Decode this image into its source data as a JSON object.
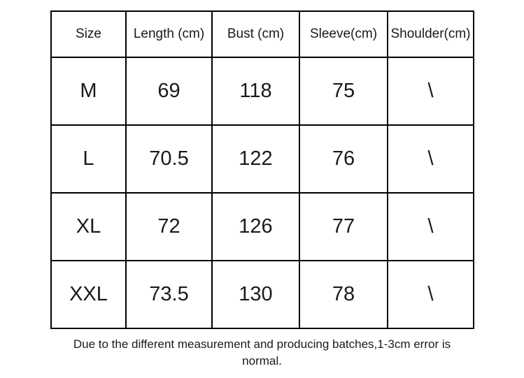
{
  "chart_data": {
    "type": "table",
    "title": "",
    "columns": [
      "Size",
      "Length (cm)",
      "Bust (cm)",
      "Sleeve(cm)",
      "Shoulder(cm)"
    ],
    "rows": [
      [
        "M",
        "69",
        "118",
        "75",
        "\\"
      ],
      [
        "L",
        "70.5",
        "122",
        "76",
        "\\"
      ],
      [
        "XL",
        "72",
        "126",
        "77",
        "\\"
      ],
      [
        "XXL",
        "73.5",
        "130",
        "78",
        "\\"
      ]
    ],
    "note_line1": "Due to the different measurement and producing batches,1-3cm error is",
    "note_line2": "normal."
  },
  "colors": {
    "background": "#ffffff",
    "border": "#000000",
    "text": "#1a1a1a"
  }
}
